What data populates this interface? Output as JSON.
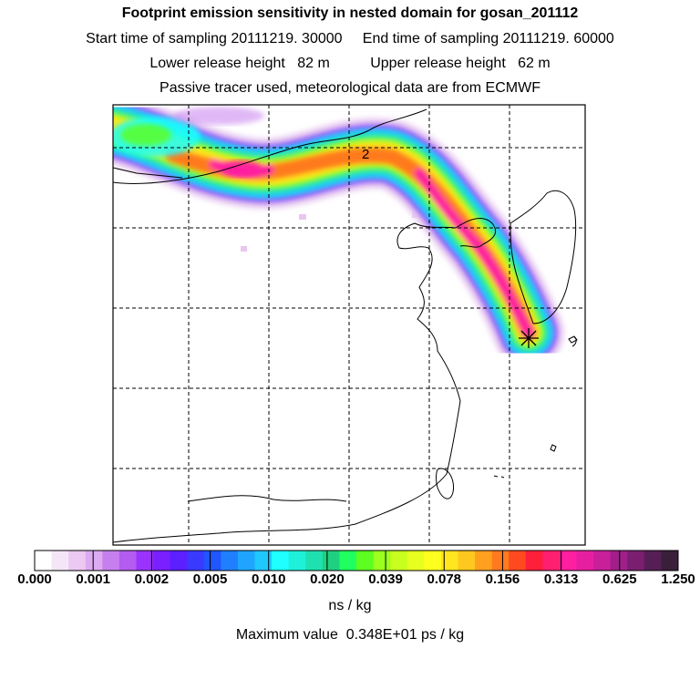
{
  "header": {
    "title": "Footprint emission sensitivity in nested domain for gosan_201112",
    "sampling_line": "Start time of sampling 20111219. 30000     End time of sampling 20111219. 60000",
    "height_line": "Lower release height   82 m          Upper release height   62 m",
    "tracer_line": "Passive tracer used, meteorological data are from ECMWF"
  },
  "map": {
    "contour_label": "2",
    "receptor_marker": "star-icon",
    "colors": {
      "land_outline": "#000000",
      "grid_lines": "#000000"
    }
  },
  "colorbar": {
    "colors": [
      "#ffffff",
      "#f5e6f7",
      "#ebc9f2",
      "#dcaaf0",
      "#c77fef",
      "#b45bf0",
      "#9b33ff",
      "#7a1fff",
      "#5c1fff",
      "#3a3aff",
      "#2155ff",
      "#1f7fff",
      "#1fa5ff",
      "#1fc8ff",
      "#1fffff",
      "#1ff0d9",
      "#1fe0b0",
      "#1fd080",
      "#1fff60",
      "#5cff1f",
      "#9bff1f",
      "#c8ff1f",
      "#e6ff1f",
      "#ffff1f",
      "#ffe61f",
      "#ffc81f",
      "#ffa01f",
      "#ff7a1f",
      "#ff4a1f",
      "#ff1f3a",
      "#ff1f70",
      "#ff1fa0",
      "#e61fa0",
      "#c81f9b",
      "#a01f8a",
      "#7a1f70",
      "#551f55",
      "#3a1f3a"
    ],
    "tick_labels": [
      "0.000",
      "0.001",
      "0.002",
      "0.005",
      "0.010",
      "0.020",
      "0.039",
      "0.078",
      "0.156",
      "0.313",
      "0.625",
      "1.250"
    ],
    "units": "ns / kg",
    "max_value_text": "Maximum value  0.348E+01 ps / kg"
  }
}
